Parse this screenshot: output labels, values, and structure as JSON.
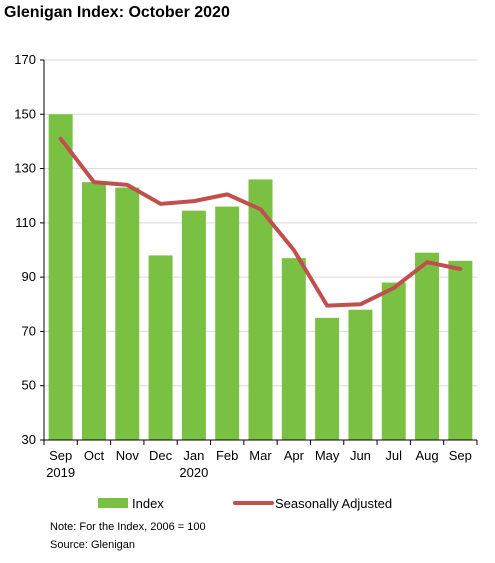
{
  "chart_data": {
    "type": "bar",
    "title": "Glenigan Index: October 2020",
    "categories": [
      "Sep",
      "Oct",
      "Nov",
      "Dec",
      "Jan",
      "Feb",
      "Mar",
      "Apr",
      "May",
      "Jun",
      "Jul",
      "Aug",
      "Sep"
    ],
    "year_labels": [
      "2019",
      "",
      "",
      "",
      "2020",
      "",
      "",
      "",
      "",
      "",
      "",
      "",
      ""
    ],
    "series": [
      {
        "name": "Index",
        "type": "bar",
        "color": "#7ac143",
        "values": [
          150,
          125,
          123,
          98,
          114.5,
          116,
          126,
          97,
          75,
          78,
          88,
          99,
          96
        ]
      },
      {
        "name": "Seasonally Adjusted",
        "type": "line",
        "color": "#c0504d",
        "values": [
          141,
          125,
          124,
          117,
          118,
          120.5,
          115,
          100,
          79.5,
          80,
          86,
          95.5,
          93
        ]
      }
    ],
    "ylim": [
      30,
      170
    ],
    "yticks": [
      30,
      50,
      70,
      90,
      110,
      130,
      150,
      170
    ],
    "grid": true,
    "legend": "bottom"
  },
  "notes": {
    "line1": "Note: For the Index, 2006 = 100",
    "line2": "Source: Glenigan"
  }
}
